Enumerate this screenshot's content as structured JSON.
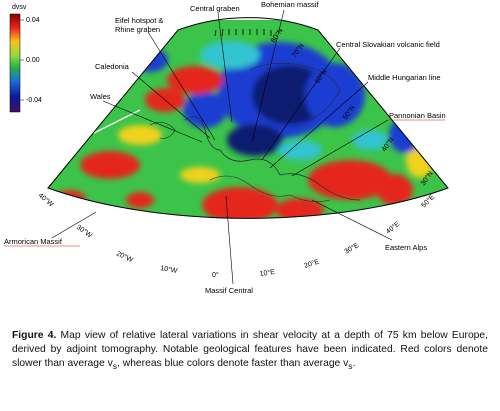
{
  "colorbar": {
    "title": "dvsv",
    "ticks": [
      "0.04",
      "0.00",
      "-0.04"
    ],
    "colors": [
      "#8b0000",
      "#e8241c",
      "#f6c21c",
      "#9ad840",
      "#22b24a",
      "#1f6fd8",
      "#0a1c9a",
      "#4a0a6a"
    ]
  },
  "depth_label": "75 km",
  "map_colors": {
    "base_green": "#3cc44a",
    "red": "#e4281e",
    "yellow": "#f0d21e",
    "blue": "#1e3cd2",
    "dark_blue": "#101c70",
    "cyan": "#30c4d0"
  },
  "annotations": {
    "central_graben": "Central graben",
    "bohemian_massif": "Bohemian massif",
    "eifel": "Eifel hotspot &",
    "rhine": "Rhine graben",
    "caledonia": "Caledonia",
    "wales": "Wales",
    "central_slovakian": "Central Slovakian volcanic field",
    "middle_hungarian": "Middle Hungarian line",
    "pannonian": "Pannonian Basin",
    "armorican": "Armorican Massif",
    "eastern_alps": "Eastern Alps",
    "massif_central": "Massif Central"
  },
  "lat_ticks": [
    "80°N",
    "70°N",
    "60°N",
    "50°N",
    "40°N",
    "30°N"
  ],
  "lon_ticks": [
    "40°W",
    "30°W",
    "20°W",
    "10°W",
    "0°",
    "10°E",
    "20°E",
    "30°E",
    "40°E",
    "50°E"
  ],
  "caption": {
    "label": "Figure 4.",
    "text": " Map view of relative lateral variations in shear velocity at a depth of 75 km below Europe, derived by adjoint tomography. Notable geological features have been indicated. Red colors denote slower than average v",
    "sub1": "s",
    "text2": ", whereas blue colors denote faster than average v",
    "sub2": "s",
    "end": "."
  }
}
